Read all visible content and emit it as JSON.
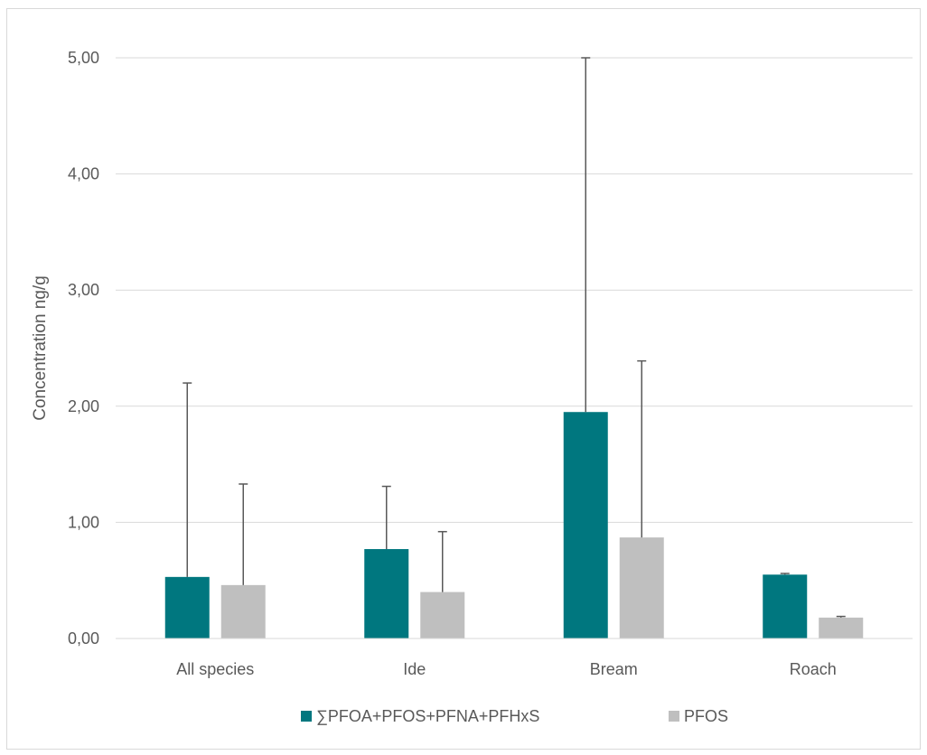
{
  "chart_data": {
    "type": "bar",
    "title": "",
    "xlabel": "",
    "ylabel": "Concentration ng/g",
    "categories": [
      "All species",
      "Ide",
      "Bream",
      "Roach"
    ],
    "ylim": [
      0,
      5
    ],
    "yticks": [
      0,
      1,
      2,
      3,
      4,
      5
    ],
    "ytick_labels": [
      "0,00",
      "1,00",
      "2,00",
      "3,00",
      "4,00",
      "5,00"
    ],
    "grid": true,
    "legend_position": "bottom",
    "series": [
      {
        "name": "∑PFOA+PFOS+PFNA+PFHxS",
        "color": "#00777f",
        "values": [
          0.53,
          0.77,
          1.95,
          0.55
        ],
        "error_upper": [
          2.2,
          1.31,
          5.0,
          0.56
        ]
      },
      {
        "name": "PFOS",
        "color": "#bfbfbf",
        "values": [
          0.46,
          0.4,
          0.87,
          0.18
        ],
        "error_upper": [
          1.33,
          0.92,
          2.39,
          0.19
        ]
      }
    ]
  }
}
